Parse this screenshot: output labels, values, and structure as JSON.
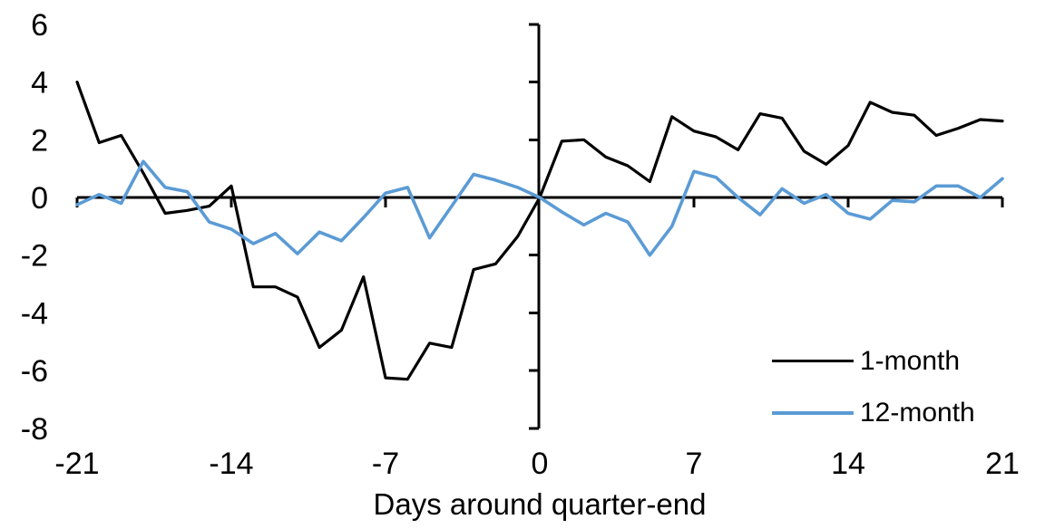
{
  "chart_data": {
    "type": "line",
    "xlabel": "Days around quarter-end",
    "ylabel": "",
    "xlim": [
      -21,
      21
    ],
    "ylim": [
      -8,
      6
    ],
    "x_ticks": [
      -21,
      -14,
      -7,
      0,
      7,
      14,
      21
    ],
    "y_ticks": [
      6,
      4,
      2,
      0,
      -2,
      -4,
      -6,
      -8
    ],
    "grid": "off",
    "legend_position": "inside-right-below-axis",
    "axes_cross_at_zero": true,
    "background_color": "#ffffff",
    "axis_color": "#000000",
    "x": [
      -21,
      -20,
      -19,
      -18,
      -17,
      -16,
      -15,
      -14,
      -13,
      -12,
      -11,
      -10,
      -9,
      -8,
      -7,
      -6,
      -5,
      -4,
      -3,
      -2,
      -1,
      0,
      1,
      2,
      3,
      4,
      5,
      6,
      7,
      8,
      9,
      10,
      11,
      12,
      13,
      14,
      15,
      16,
      17,
      18,
      19,
      20,
      21
    ],
    "series": [
      {
        "name": "1-month",
        "color": "#000000",
        "values": [
          4.0,
          1.9,
          2.15,
          0.85,
          -0.55,
          -0.45,
          -0.3,
          0.4,
          -3.1,
          -3.1,
          -3.45,
          -5.2,
          -4.6,
          -2.75,
          -6.25,
          -6.3,
          -5.05,
          -5.2,
          -2.5,
          -2.3,
          -1.35,
          0.0,
          1.95,
          2.0,
          1.4,
          1.1,
          0.55,
          2.8,
          2.3,
          2.1,
          1.65,
          2.9,
          2.75,
          1.6,
          1.15,
          1.8,
          3.3,
          2.95,
          2.85,
          2.15,
          2.4,
          2.7,
          2.65
        ]
      },
      {
        "name": "12-month",
        "color": "#5B9BD5",
        "values": [
          -0.25,
          0.1,
          -0.2,
          1.25,
          0.35,
          0.2,
          -0.85,
          -1.1,
          -1.6,
          -1.25,
          -1.95,
          -1.2,
          -1.5,
          -0.7,
          0.15,
          0.35,
          -1.4,
          -0.3,
          0.8,
          0.6,
          0.35,
          0.0,
          -0.5,
          -0.95,
          -0.55,
          -0.85,
          -2.0,
          -1.0,
          0.9,
          0.7,
          0.0,
          -0.6,
          0.3,
          -0.2,
          0.1,
          -0.55,
          -0.75,
          -0.1,
          -0.15,
          0.4,
          0.4,
          0.0,
          0.65
        ]
      }
    ]
  }
}
